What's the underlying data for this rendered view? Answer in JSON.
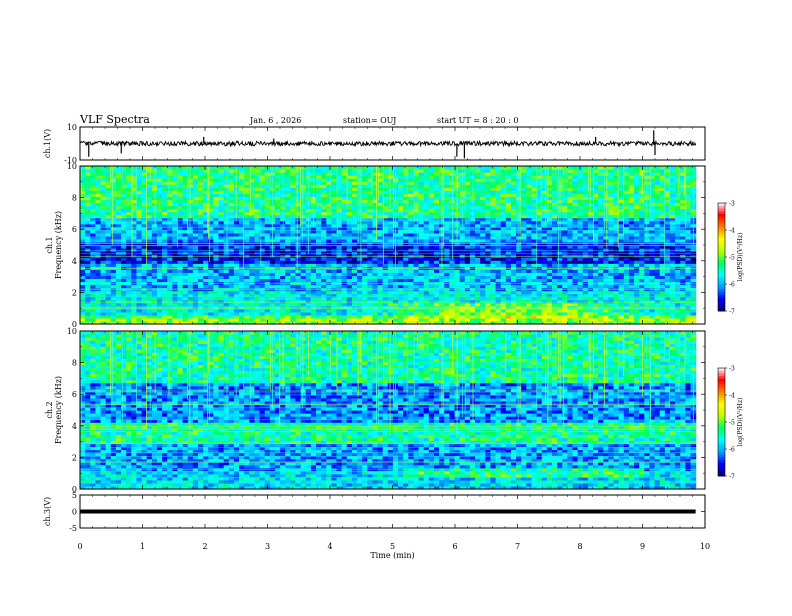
{
  "header": {
    "title": "VLF Spectra",
    "date": "Jan. 6 , 2026",
    "station": "station= OUJ",
    "start": "start UT = 8 : 20 : 0"
  },
  "chart_data": {
    "type": "heatmap",
    "xlabel": "Time (min)",
    "xlim": [
      0,
      10
    ],
    "x_ticks": [
      "0",
      "1",
      "2",
      "3",
      "4",
      "5",
      "6",
      "7",
      "8",
      "9",
      "10"
    ],
    "panels": [
      {
        "id": "ch1-waveform",
        "kind": "line",
        "ylabel": "ch.1(V)",
        "ylim": [
          -10,
          10
        ],
        "y_ticks": [
          "10",
          "-10"
        ],
        "baseline_value": 0,
        "spikes": [
          {
            "t": 0.14,
            "v": -8
          },
          {
            "t": 0.66,
            "v": -6
          },
          {
            "t": 1.98,
            "v": 4
          },
          {
            "t": 3.1,
            "v": 3
          },
          {
            "t": 6.03,
            "v": -8
          },
          {
            "t": 6.15,
            "v": -9
          },
          {
            "t": 8.25,
            "v": 4
          },
          {
            "t": 9.18,
            "v": 8
          },
          {
            "t": 9.2,
            "v": -7
          }
        ]
      },
      {
        "id": "ch1-spectrogram",
        "kind": "spectrogram",
        "ylabel": "ch.1",
        "ylabel2": "Frequency (kHz)",
        "ylim": [
          0,
          10
        ],
        "y_ticks": [
          "10",
          "8",
          "6",
          "4",
          "2",
          "0"
        ],
        "colorbar": {
          "label": "log(PSD)(V²/Hz)",
          "range": [
            -7,
            -3
          ],
          "ticks": [
            "-3",
            "-4",
            "-5",
            "-6",
            "-7"
          ]
        }
      },
      {
        "id": "ch2-spectrogram",
        "kind": "spectrogram",
        "ylabel": "ch.2",
        "ylabel2": "Frequency (kHz)",
        "ylim": [
          0,
          10
        ],
        "y_ticks": [
          "10",
          "8",
          "6",
          "4",
          "2",
          "0"
        ],
        "colorbar": {
          "label": "log(PSD)(V²/Hz)",
          "range": [
            -7,
            -3
          ],
          "ticks": [
            "-3",
            "-4",
            "-5",
            "-6",
            "-7"
          ]
        }
      },
      {
        "id": "ch3-waveform",
        "kind": "line",
        "ylabel": "ch.3(V)",
        "ylim": [
          -5,
          5
        ],
        "y_ticks": [
          "5",
          "0",
          "-5"
        ],
        "baseline_value": 0,
        "spikes": []
      }
    ]
  },
  "colors": {
    "background": "#ffffff",
    "frame": "#000000",
    "colormap": [
      "#000070",
      "#0000ff",
      "#00a0ff",
      "#00ffff",
      "#00ff60",
      "#c0ff00",
      "#ffff00",
      "#ff8000",
      "#ff0000",
      "#ffffff"
    ]
  }
}
